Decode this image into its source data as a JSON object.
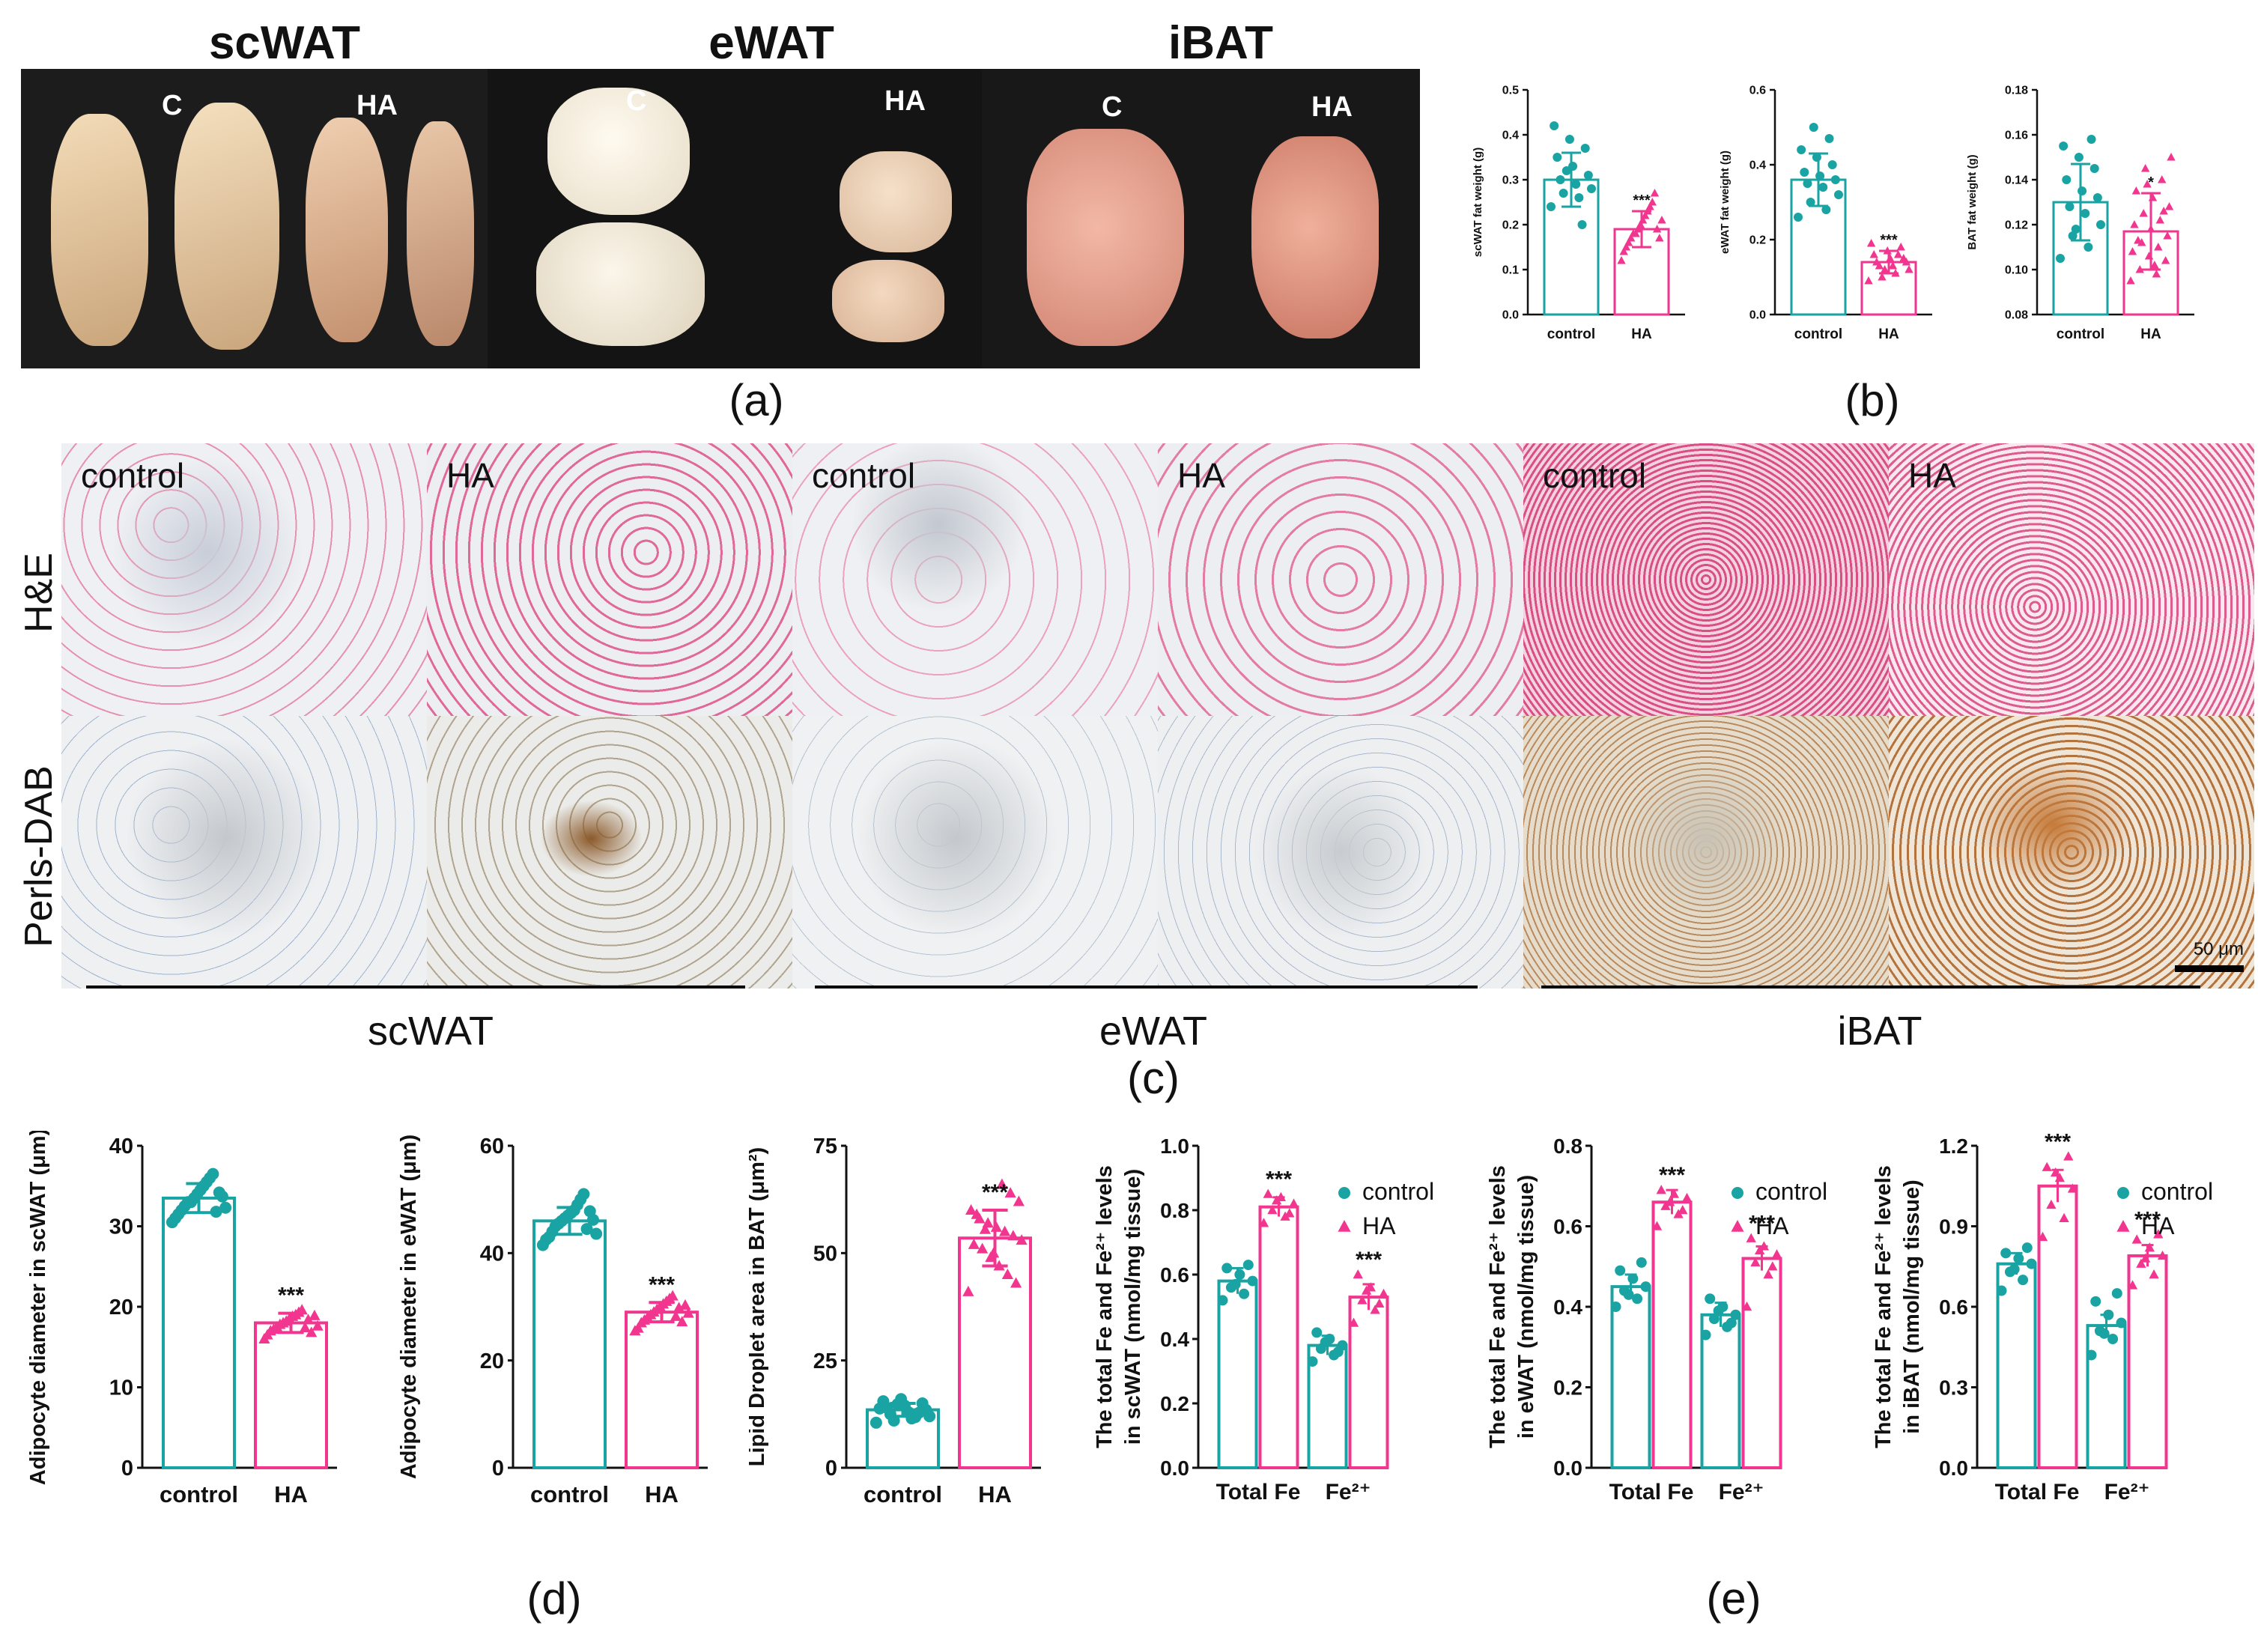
{
  "colors": {
    "control": "#1aa3a3",
    "HA": "#f2368f"
  },
  "panel_a": {
    "titles": [
      "scWAT",
      "eWAT",
      "iBAT"
    ],
    "tags": [
      {
        "c": "C",
        "ha": "HA"
      },
      {
        "c": "C",
        "ha": "HA"
      },
      {
        "c": "C",
        "ha": "HA"
      }
    ],
    "caption": "(a)"
  },
  "panel_b_caption": "(b)",
  "panel_c": {
    "row_labels": [
      "H&E",
      "Perls-DAB"
    ],
    "column_labels": [
      "control",
      "HA",
      "control",
      "HA",
      "control",
      "HA"
    ],
    "section_labels": [
      "scWAT",
      "eWAT",
      "iBAT"
    ],
    "scalebar": "50 μm",
    "caption": "(c)"
  },
  "panel_d_caption": "(d)",
  "panel_e_caption": "(e)",
  "chart_data": [
    {
      "id": "b1",
      "type": "bar",
      "categories": [
        "control",
        "HA"
      ],
      "values": [
        0.3,
        0.19
      ],
      "errors": [
        0.06,
        0.04
      ],
      "ylabel": "scWAT fat weight (g)",
      "ylim": [
        0,
        0.5
      ],
      "yticks": [
        "0.0",
        "0.1",
        "0.2",
        "0.3",
        "0.4",
        "0.5"
      ],
      "significance": [
        "",
        "***"
      ],
      "points": [
        [
          0.24,
          0.26,
          0.27,
          0.28,
          0.29,
          0.3,
          0.31,
          0.33,
          0.35,
          0.37,
          0.39,
          0.42,
          0.2,
          0.32
        ],
        [
          0.12,
          0.14,
          0.15,
          0.16,
          0.17,
          0.18,
          0.18,
          0.19,
          0.2,
          0.21,
          0.22,
          0.23,
          0.24,
          0.25,
          0.27,
          0.19,
          0.17,
          0.21
        ]
      ]
    },
    {
      "id": "b2",
      "type": "bar",
      "categories": [
        "control",
        "HA"
      ],
      "values": [
        0.36,
        0.14
      ],
      "errors": [
        0.07,
        0.03
      ],
      "ylabel": "eWAT fat weight (g)",
      "ylim": [
        0,
        0.6
      ],
      "yticks": [
        "0.0",
        "0.2",
        "0.4",
        "0.6"
      ],
      "significance": [
        "",
        "***"
      ],
      "points": [
        [
          0.26,
          0.28,
          0.3,
          0.32,
          0.34,
          0.35,
          0.36,
          0.37,
          0.38,
          0.4,
          0.42,
          0.44,
          0.47,
          0.5
        ],
        [
          0.09,
          0.1,
          0.11,
          0.12,
          0.13,
          0.13,
          0.14,
          0.14,
          0.15,
          0.15,
          0.16,
          0.17,
          0.18,
          0.19,
          0.12,
          0.16
        ]
      ]
    },
    {
      "id": "b3",
      "type": "bar",
      "categories": [
        "control",
        "HA"
      ],
      "values": [
        0.13,
        0.117
      ],
      "errors": [
        0.017,
        0.017
      ],
      "ylabel": "BAT fat weight (g)",
      "ylim": [
        0.08,
        0.18
      ],
      "yticks": [
        "0.08",
        "0.10",
        "0.12",
        "0.14",
        "0.16",
        "0.18"
      ],
      "significance": [
        "",
        "*"
      ],
      "points": [
        [
          0.105,
          0.11,
          0.115,
          0.12,
          0.125,
          0.128,
          0.132,
          0.135,
          0.14,
          0.145,
          0.15,
          0.155,
          0.158,
          0.118
        ],
        [
          0.095,
          0.098,
          0.1,
          0.104,
          0.106,
          0.108,
          0.11,
          0.112,
          0.115,
          0.118,
          0.12,
          0.122,
          0.125,
          0.128,
          0.132,
          0.135,
          0.14,
          0.145,
          0.15,
          0.102,
          0.113,
          0.126,
          0.138
        ]
      ]
    },
    {
      "id": "d1",
      "type": "bar",
      "categories": [
        "control",
        "HA"
      ],
      "values": [
        33.5,
        18.0
      ],
      "errors": [
        1.8,
        1.2
      ],
      "ylabel": "Adipocyte diameter in scWAT (μm)",
      "ylim": [
        0,
        40
      ],
      "yticks": [
        "0",
        "10",
        "20",
        "30",
        "40"
      ],
      "significance": [
        "",
        "***"
      ],
      "points": [
        [
          30.5,
          31.0,
          31.5,
          32.0,
          32.5,
          33.0,
          33.0,
          33.5,
          34.0,
          34.5,
          35.0,
          35.5,
          36.0,
          36.5,
          31.8,
          34.2,
          33.7,
          32.3
        ],
        [
          16.0,
          16.5,
          17.0,
          17.2,
          17.5,
          17.8,
          18.0,
          18.2,
          18.5,
          18.8,
          19.0,
          19.3,
          19.6,
          17.4,
          18.4,
          16.8,
          18.9,
          17.6
        ]
      ]
    },
    {
      "id": "d2",
      "type": "bar",
      "categories": [
        "control",
        "HA"
      ],
      "values": [
        46.0,
        29.0
      ],
      "errors": [
        2.5,
        1.8
      ],
      "ylabel": "Adipocyte diameter in eWAT (μm)",
      "ylim": [
        0,
        60
      ],
      "yticks": [
        "0",
        "20",
        "40",
        "60"
      ],
      "significance": [
        "",
        "***"
      ],
      "points": [
        [
          41.5,
          42.5,
          43.0,
          44.0,
          45.0,
          45.5,
          46.0,
          46.5,
          47.0,
          47.5,
          48.0,
          49.0,
          50.0,
          51.0,
          44.5,
          47.8,
          46.2,
          43.6
        ],
        [
          25.5,
          26.0,
          27.0,
          27.5,
          28.0,
          28.5,
          29.0,
          29.5,
          30.0,
          30.5,
          31.0,
          31.5,
          32.0,
          28.2,
          29.8,
          27.2,
          30.3,
          28.8
        ]
      ]
    },
    {
      "id": "d3",
      "type": "bar",
      "categories": [
        "control",
        "HA"
      ],
      "values": [
        13.5,
        53.5
      ],
      "errors": [
        1.5,
        6.5
      ],
      "ylabel": "Lipid Droplet area in BAT (μm²)",
      "ylim": [
        0,
        75
      ],
      "yticks": [
        "0",
        "25",
        "50",
        "75"
      ],
      "significance": [
        "",
        "***"
      ],
      "points": [
        [
          10.5,
          11.0,
          11.5,
          12.0,
          12.5,
          13.0,
          13.5,
          14.0,
          14.5,
          15.0,
          15.5,
          16.0,
          12.8,
          13.8,
          14.8,
          11.8
        ],
        [
          41.0,
          43.0,
          45.0,
          47.0,
          49.0,
          51.0,
          52.0,
          53.0,
          54.0,
          55.0,
          56.0,
          57.0,
          58.0,
          60.0,
          62.0,
          64.0,
          66.0,
          50.0,
          55.5,
          59.0
        ]
      ]
    },
    {
      "id": "e1",
      "type": "bar",
      "categories": [
        "Total Fe",
        "Fe²⁺"
      ],
      "series": [
        {
          "name": "control",
          "values": [
            0.58,
            0.38
          ],
          "errors": [
            0.04,
            0.03
          ],
          "points": [
            [
              0.52,
              0.54,
              0.56,
              0.58,
              0.6,
              0.62,
              0.63,
              0.57
            ],
            [
              0.33,
              0.35,
              0.37,
              0.38,
              0.4,
              0.42,
              0.36,
              0.39
            ]
          ]
        },
        {
          "name": "HA",
          "values": [
            0.81,
            0.53
          ],
          "errors": [
            0.03,
            0.04
          ],
          "points": [
            [
              0.76,
              0.78,
              0.8,
              0.82,
              0.84,
              0.85,
              0.79,
              0.83
            ],
            [
              0.45,
              0.49,
              0.52,
              0.54,
              0.56,
              0.6,
              0.51,
              0.55
            ]
          ]
        }
      ],
      "ylabel": "The total Fe and Fe²⁺ levels in scWAT (nmol/mg tissue)",
      "ylim": [
        0,
        1.0
      ],
      "yticks": [
        "0.0",
        "0.2",
        "0.4",
        "0.6",
        "0.8",
        "1.0"
      ],
      "significance": [
        "***",
        "***"
      ],
      "legend": [
        "control",
        "HA"
      ]
    },
    {
      "id": "e2",
      "type": "bar",
      "categories": [
        "Total Fe",
        "Fe²⁺"
      ],
      "series": [
        {
          "name": "control",
          "values": [
            0.45,
            0.38
          ],
          "errors": [
            0.03,
            0.03
          ],
          "points": [
            [
              0.4,
              0.42,
              0.44,
              0.45,
              0.47,
              0.49,
              0.51,
              0.43
            ],
            [
              0.33,
              0.35,
              0.37,
              0.38,
              0.4,
              0.42,
              0.36,
              0.39
            ]
          ]
        },
        {
          "name": "HA",
          "values": [
            0.66,
            0.52
          ],
          "errors": [
            0.03,
            0.03
          ],
          "points": [
            [
              0.6,
              0.63,
              0.65,
              0.67,
              0.68,
              0.69,
              0.64,
              0.66
            ],
            [
              0.4,
              0.48,
              0.51,
              0.53,
              0.55,
              0.57,
              0.5,
              0.54
            ]
          ]
        }
      ],
      "ylabel": "The total Fe and Fe²⁺ levels in eWAT (nmol/mg tissue)",
      "ylim": [
        0,
        0.8
      ],
      "yticks": [
        "0.0",
        "0.2",
        "0.4",
        "0.6",
        "0.8"
      ],
      "significance": [
        "***",
        "***"
      ],
      "legend": [
        "control",
        "HA"
      ]
    },
    {
      "id": "e3",
      "type": "bar",
      "categories": [
        "Total Fe",
        "Fe²⁺"
      ],
      "series": [
        {
          "name": "control",
          "values": [
            0.76,
            0.53
          ],
          "errors": [
            0.04,
            0.04
          ],
          "points": [
            [
              0.66,
              0.7,
              0.73,
              0.76,
              0.78,
              0.8,
              0.82,
              0.74
            ],
            [
              0.42,
              0.48,
              0.51,
              0.54,
              0.57,
              0.62,
              0.65,
              0.5
            ]
          ]
        },
        {
          "name": "HA",
          "values": [
            1.05,
            0.79
          ],
          "errors": [
            0.06,
            0.04
          ],
          "points": [
            [
              0.86,
              0.93,
              0.98,
              1.04,
              1.08,
              1.12,
              1.16,
              1.1
            ],
            [
              0.68,
              0.72,
              0.76,
              0.79,
              0.82,
              0.85,
              0.87,
              0.78
            ]
          ]
        }
      ],
      "ylabel": "The total Fe and Fe²⁺ levels in iBAT (nmol/mg tissue)",
      "ylim": [
        0,
        1.2
      ],
      "yticks": [
        "0.0",
        "0.3",
        "0.6",
        "0.9",
        "1.2"
      ],
      "significance": [
        "***",
        "***"
      ],
      "legend": [
        "control",
        "HA"
      ]
    }
  ]
}
